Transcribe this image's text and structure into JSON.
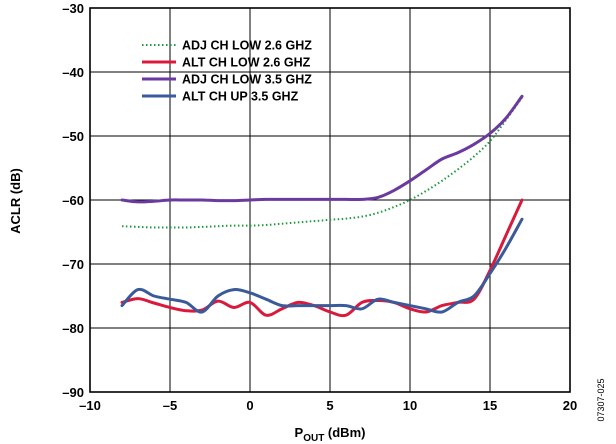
{
  "chart_data": {
    "type": "line",
    "xlabel": "P",
    "xlabel_sub": "OUT",
    "xlabel_unit": " (dBm)",
    "ylabel": "ACLR (dB)",
    "xlim": [
      -10,
      20
    ],
    "ylim": [
      -90,
      -30
    ],
    "x_ticks": [
      -10,
      -5,
      0,
      5,
      10,
      15,
      20
    ],
    "x_tick_labels": [
      "–10",
      "–5",
      "0",
      "5",
      "10",
      "15",
      "20"
    ],
    "y_ticks": [
      -90,
      -80,
      -70,
      -60,
      -50,
      -40,
      -30
    ],
    "y_tick_labels": [
      "–90",
      "–80",
      "–70",
      "–60",
      "–50",
      "–40",
      "–30"
    ],
    "grid": true,
    "legend_position": "top-left",
    "figure_id": "07307-025",
    "series": [
      {
        "name": "ADJ CH LOW 2.6 GHZ",
        "color": "#1a9a3a",
        "style": "dotted",
        "x": [
          -8,
          -7,
          -6,
          -5,
          -4,
          -3,
          -2,
          -1,
          0,
          1,
          2,
          3,
          4,
          5,
          6,
          7,
          8,
          9,
          10,
          11,
          12,
          13,
          14,
          15,
          16,
          17
        ],
        "y": [
          -64.1,
          -64.2,
          -64.3,
          -64.3,
          -64.3,
          -64.2,
          -64.1,
          -64.0,
          -64.0,
          -63.9,
          -63.7,
          -63.5,
          -63.3,
          -63.1,
          -62.9,
          -62.6,
          -62.0,
          -61.1,
          -60.0,
          -58.6,
          -57.0,
          -55.2,
          -53.2,
          -50.8,
          -47.5,
          -44.0
        ]
      },
      {
        "name": "ALT CH LOW 2.6 GHZ",
        "color": "#d91a3c",
        "style": "solid",
        "x": [
          -8,
          -7,
          -6,
          -5,
          -4,
          -3,
          -2,
          -1,
          0,
          1,
          2,
          3,
          4,
          5,
          6,
          7,
          8,
          9,
          10,
          11,
          12,
          13,
          14,
          15,
          16,
          17
        ],
        "y": [
          -76.0,
          -75.4,
          -76.1,
          -76.8,
          -77.3,
          -77.2,
          -75.8,
          -76.8,
          -76.0,
          -78.0,
          -77.0,
          -76.0,
          -76.5,
          -77.5,
          -78.0,
          -76.0,
          -75.7,
          -76.0,
          -77.0,
          -77.5,
          -76.5,
          -76.0,
          -75.5,
          -71.0,
          -65.5,
          -60.0
        ]
      },
      {
        "name": "ADJ CH LOW 3.5 GHZ",
        "color": "#6a3aa0",
        "style": "solid",
        "x": [
          -8,
          -7,
          -6,
          -5,
          -4,
          -3,
          -2,
          -1,
          0,
          1,
          2,
          3,
          4,
          5,
          6,
          7,
          8,
          9,
          10,
          11,
          12,
          13,
          14,
          15,
          16,
          17
        ],
        "y": [
          -60.0,
          -60.3,
          -60.2,
          -60.0,
          -60.0,
          -60.0,
          -60.1,
          -60.1,
          -60.0,
          -59.9,
          -59.9,
          -59.9,
          -59.9,
          -59.9,
          -59.9,
          -59.9,
          -59.6,
          -58.5,
          -57.0,
          -55.3,
          -53.6,
          -52.6,
          -51.3,
          -49.6,
          -47.2,
          -43.8
        ]
      },
      {
        "name": "ALT CH UP 3.5 GHZ",
        "color": "#3a5a9a",
        "style": "solid",
        "x": [
          -8,
          -7,
          -6,
          -5,
          -4,
          -3,
          -2,
          -1,
          0,
          1,
          2,
          3,
          4,
          5,
          6,
          7,
          8,
          9,
          10,
          11,
          12,
          13,
          14,
          15,
          16,
          17
        ],
        "y": [
          -76.5,
          -74.0,
          -75.0,
          -75.5,
          -76.0,
          -77.5,
          -75.0,
          -74.0,
          -74.5,
          -75.5,
          -76.5,
          -76.5,
          -76.5,
          -76.5,
          -76.5,
          -77.0,
          -75.5,
          -76.0,
          -76.5,
          -77.0,
          -77.5,
          -76.0,
          -75.0,
          -71.5,
          -67.5,
          -63.0
        ]
      }
    ]
  }
}
